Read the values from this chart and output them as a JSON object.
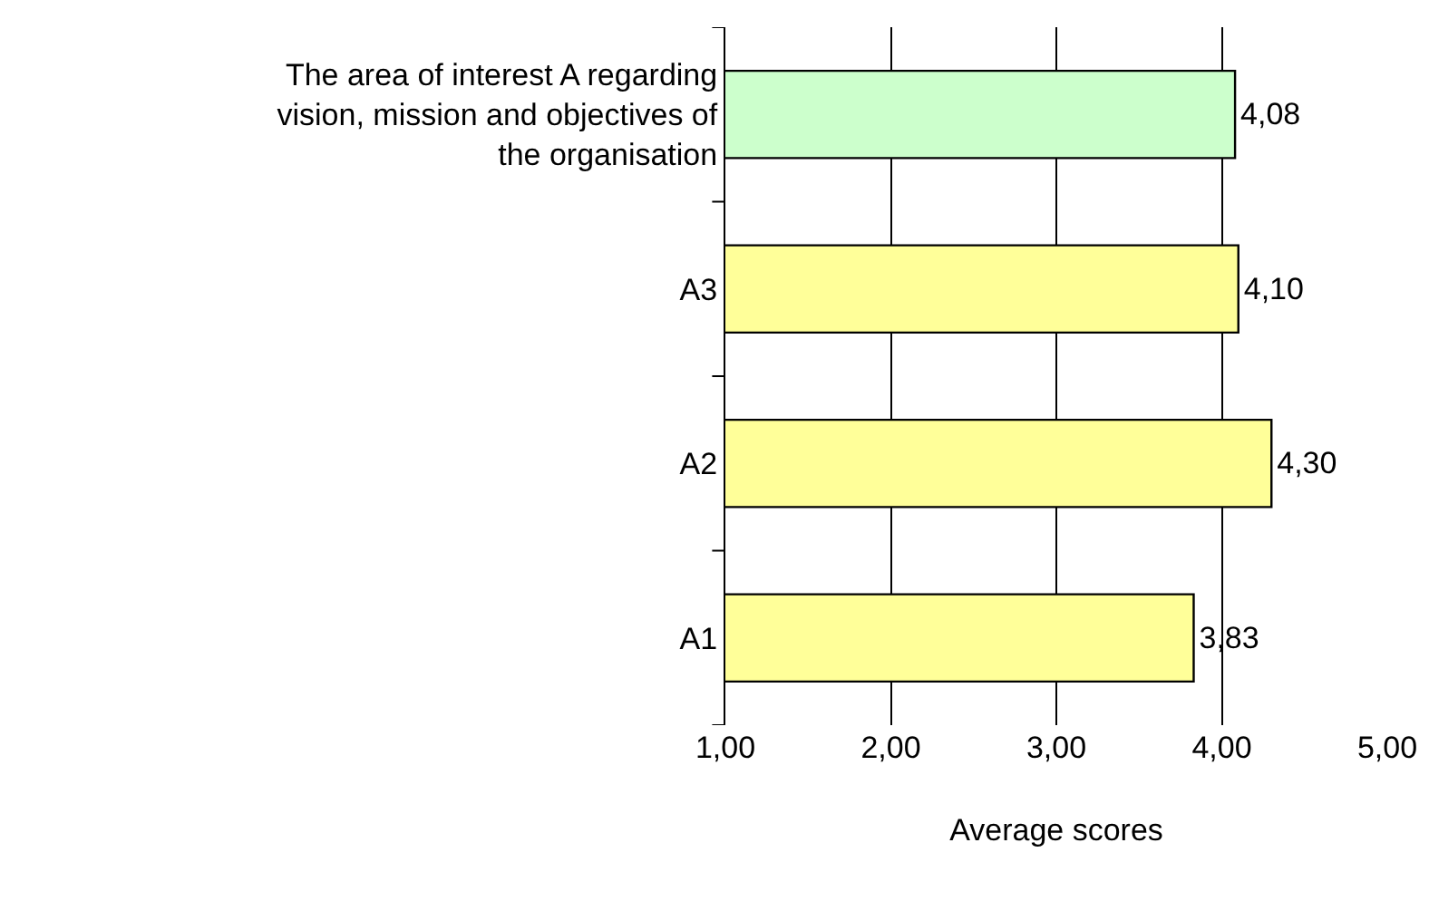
{
  "chart_data": {
    "type": "bar",
    "orientation": "horizontal",
    "xlabel": "Average scores",
    "categories": [
      "The area of interest A regarding vision, mission and objectives of the organisation",
      "A3",
      "A2",
      "A1"
    ],
    "values": [
      4.08,
      4.1,
      4.3,
      3.83
    ],
    "colors": [
      "#ccffcc",
      "#ffff99",
      "#ffff99",
      "#ffff99"
    ],
    "value_labels": [
      "4,08",
      "4,10",
      "4,30",
      "3,83"
    ],
    "xlim": [
      1,
      5
    ],
    "xticks": [
      {
        "value": 1,
        "label": "1,00"
      },
      {
        "value": 2,
        "label": "2,00"
      },
      {
        "value": 3,
        "label": "3,00"
      },
      {
        "value": 4,
        "label": "4,00"
      },
      {
        "value": 5,
        "label": "5,00"
      }
    ],
    "grid": "x"
  }
}
